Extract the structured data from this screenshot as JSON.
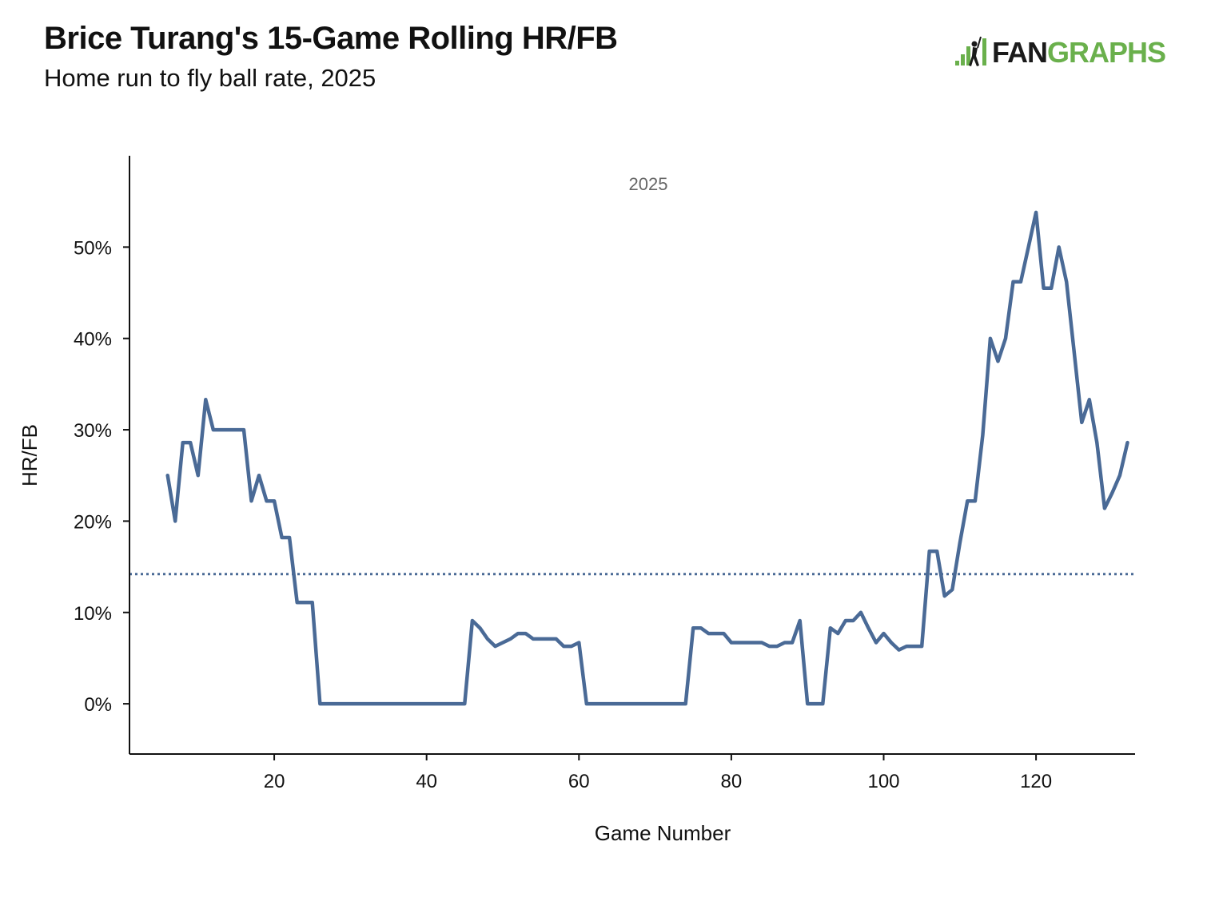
{
  "header": {
    "title": "Brice Turang's 15-Game Rolling HR/FB",
    "subtitle": "Home run to fly ball rate, 2025"
  },
  "logo": {
    "text_dark": "FAN",
    "text_green": "GRAPHS"
  },
  "colors": {
    "line": "#4a6a96",
    "reference": "#4a6a96",
    "logo_green": "#6ab04c"
  },
  "chart_data": {
    "type": "line",
    "facet_label": "2025",
    "xlabel": "Game Number",
    "ylabel": "HR/FB",
    "xlim": [
      1,
      133
    ],
    "ylim": [
      -5.5,
      60
    ],
    "x_ticks": [
      20,
      40,
      60,
      80,
      100,
      120
    ],
    "y_ticks": [
      0,
      10,
      20,
      30,
      40,
      50
    ],
    "y_tick_labels": [
      "0%",
      "10%",
      "20%",
      "30%",
      "40%",
      "50%"
    ],
    "reference_line": {
      "y": 14.2,
      "style": "dotted"
    },
    "series": [
      {
        "points": [
          [
            6,
            25
          ],
          [
            7,
            20
          ],
          [
            8,
            28.6
          ],
          [
            9,
            28.6
          ],
          [
            10,
            25
          ],
          [
            11,
            33.3
          ],
          [
            12,
            30
          ],
          [
            13,
            30
          ],
          [
            14,
            30
          ],
          [
            15,
            30
          ],
          [
            16,
            30
          ],
          [
            17,
            22.2
          ],
          [
            18,
            25
          ],
          [
            19,
            22.2
          ],
          [
            20,
            22.2
          ],
          [
            21,
            18.2
          ],
          [
            22,
            18.2
          ],
          [
            23,
            11.1
          ],
          [
            24,
            11.1
          ],
          [
            25,
            11.1
          ],
          [
            26,
            0
          ],
          [
            30,
            0
          ],
          [
            35,
            0
          ],
          [
            40,
            0
          ],
          [
            45,
            0
          ],
          [
            46,
            9.1
          ],
          [
            47,
            8.3
          ],
          [
            48,
            7.1
          ],
          [
            49,
            6.3
          ],
          [
            50,
            6.7
          ],
          [
            51,
            7.1
          ],
          [
            52,
            7.7
          ],
          [
            53,
            7.7
          ],
          [
            54,
            7.1
          ],
          [
            55,
            7.1
          ],
          [
            56,
            7.1
          ],
          [
            57,
            7.1
          ],
          [
            58,
            6.3
          ],
          [
            59,
            6.3
          ],
          [
            60,
            6.7
          ],
          [
            61,
            0
          ],
          [
            65,
            0
          ],
          [
            70,
            0
          ],
          [
            74,
            0
          ],
          [
            75,
            8.3
          ],
          [
            76,
            8.3
          ],
          [
            77,
            7.7
          ],
          [
            78,
            7.7
          ],
          [
            79,
            7.7
          ],
          [
            80,
            6.7
          ],
          [
            81,
            6.7
          ],
          [
            82,
            6.7
          ],
          [
            83,
            6.7
          ],
          [
            84,
            6.7
          ],
          [
            85,
            6.3
          ],
          [
            86,
            6.3
          ],
          [
            87,
            6.7
          ],
          [
            88,
            6.7
          ],
          [
            89,
            9.1
          ],
          [
            90,
            0
          ],
          [
            91,
            0
          ],
          [
            92,
            0
          ],
          [
            93,
            8.3
          ],
          [
            94,
            7.7
          ],
          [
            95,
            9.1
          ],
          [
            96,
            9.1
          ],
          [
            97,
            10
          ],
          [
            98,
            8.3
          ],
          [
            99,
            6.7
          ],
          [
            100,
            7.7
          ],
          [
            101,
            6.7
          ],
          [
            102,
            5.9
          ],
          [
            103,
            6.3
          ],
          [
            104,
            6.3
          ],
          [
            105,
            6.3
          ],
          [
            106,
            16.7
          ],
          [
            107,
            16.7
          ],
          [
            108,
            11.8
          ],
          [
            109,
            12.5
          ],
          [
            110,
            17.6
          ],
          [
            111,
            22.2
          ],
          [
            112,
            22.2
          ],
          [
            113,
            29.4
          ],
          [
            114,
            40
          ],
          [
            115,
            37.5
          ],
          [
            116,
            40
          ],
          [
            117,
            46.2
          ],
          [
            118,
            46.2
          ],
          [
            119,
            50
          ],
          [
            120,
            53.8
          ],
          [
            121,
            45.5
          ],
          [
            122,
            45.5
          ],
          [
            123,
            50
          ],
          [
            124,
            46.2
          ],
          [
            125,
            38.5
          ],
          [
            126,
            30.8
          ],
          [
            127,
            33.3
          ],
          [
            128,
            28.6
          ],
          [
            129,
            21.4
          ],
          [
            130,
            23.1
          ],
          [
            131,
            25
          ],
          [
            132,
            28.6
          ]
        ]
      }
    ]
  }
}
